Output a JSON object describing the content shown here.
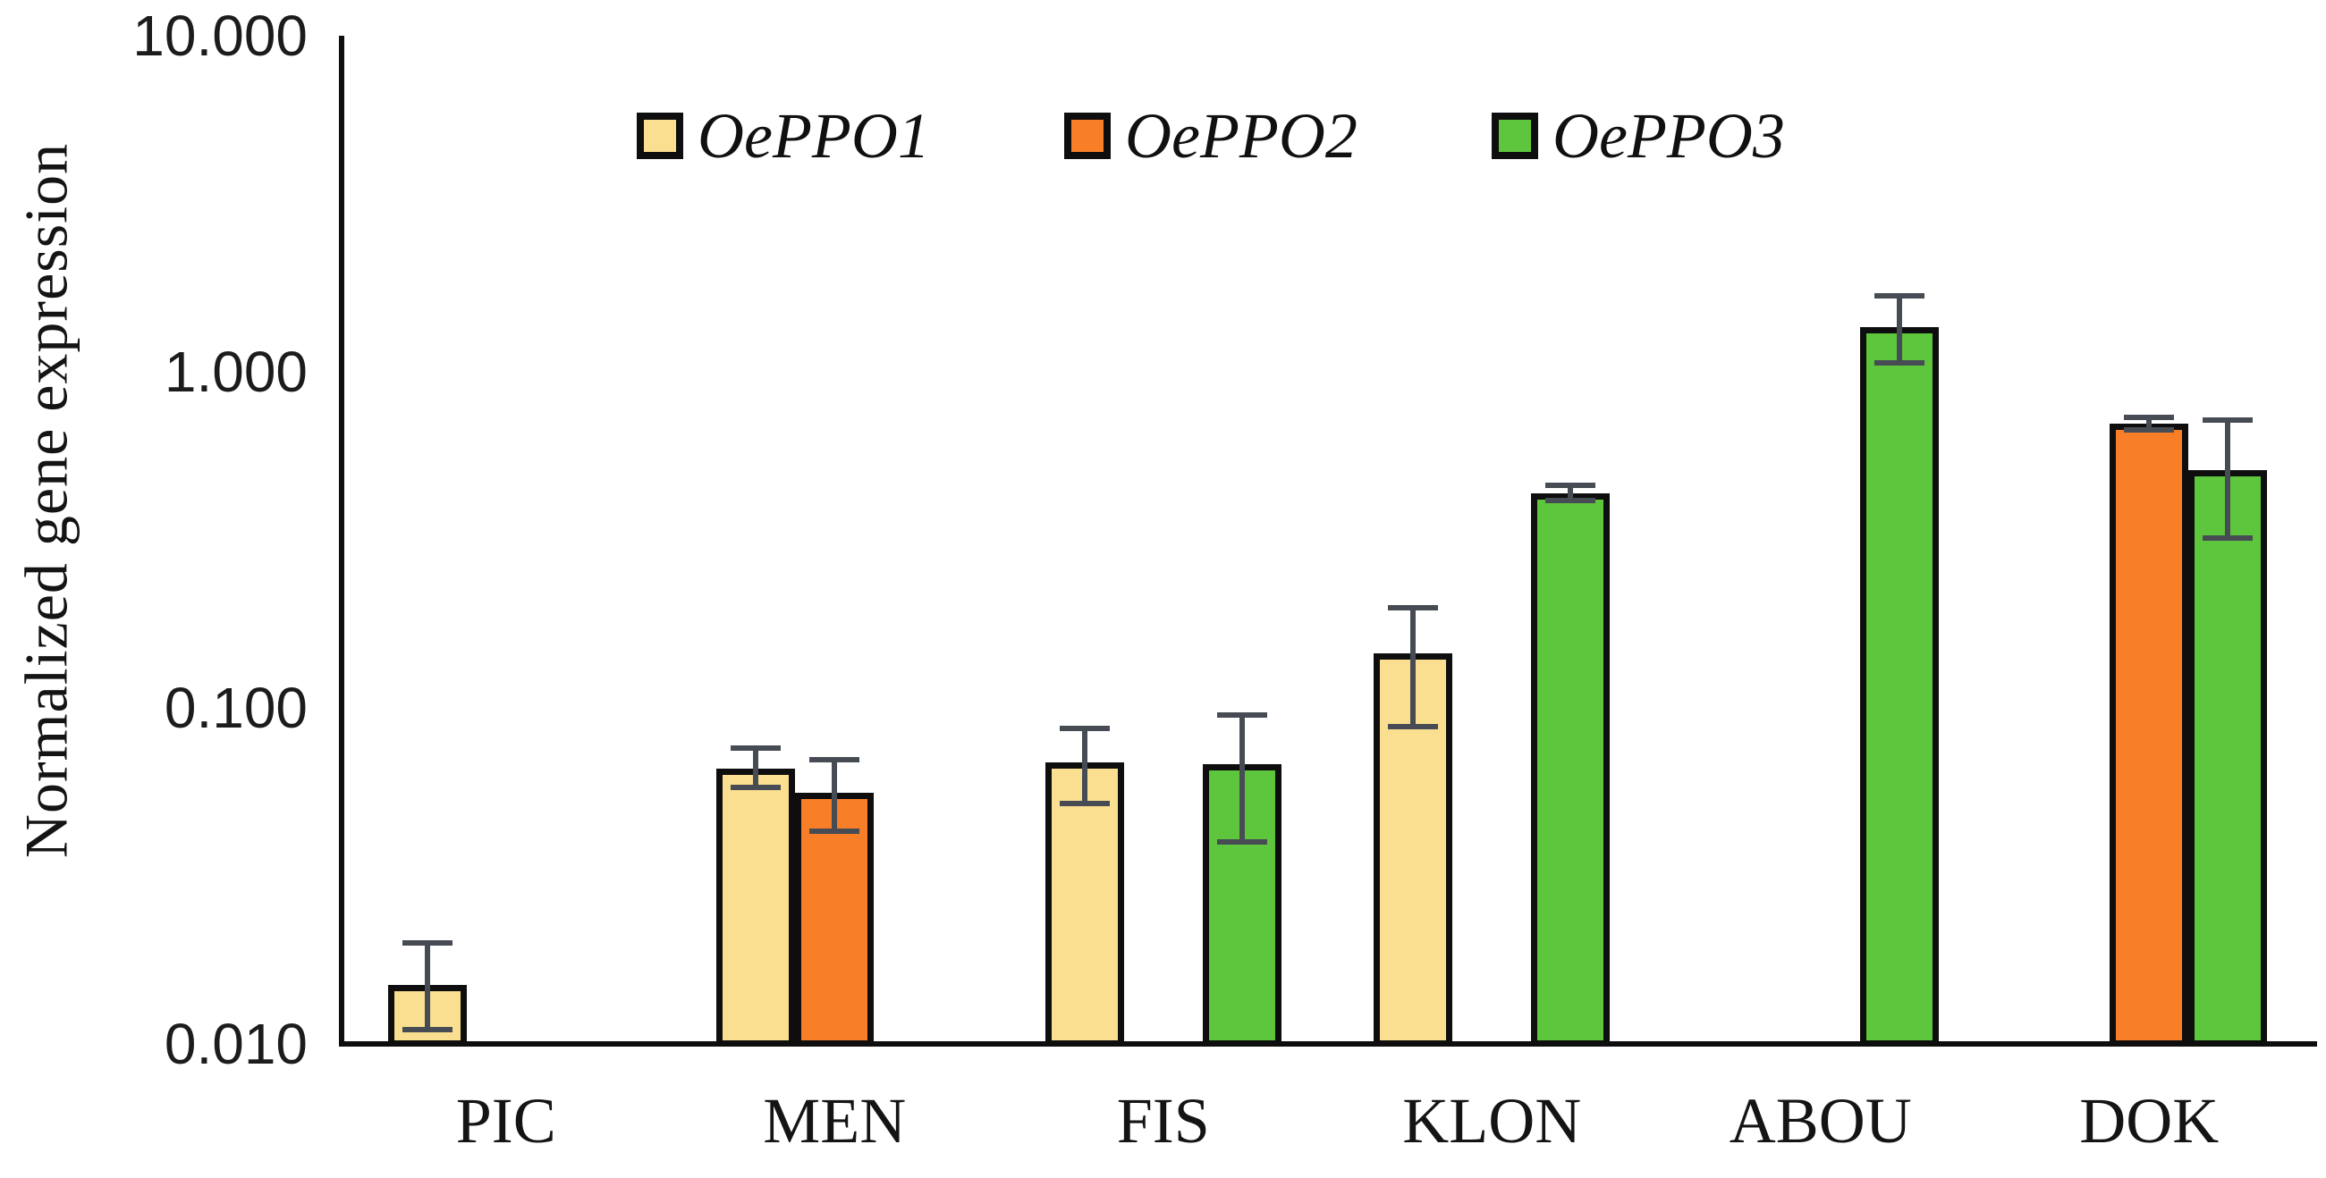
{
  "figure": {
    "y_axis_title": "Normalized gene expression",
    "y_tick_labels": [
      "10.000",
      "1.000",
      "0.100",
      "0.010"
    ],
    "category_labels": [
      "PIC",
      "MEN",
      "FIS",
      "KLON",
      "ABOU",
      "DOK"
    ],
    "legend_labels": [
      "OePPO1",
      "OePPO2",
      "OePPO3"
    ]
  },
  "colors": {
    "series_fill_OePPO1": "#FBDF90",
    "series_fill_OePPO2": "#F87E27",
    "series_fill_OePPO3": "#5EC63D",
    "bar_border": "#0E0E0E",
    "error_bar": "#474C54",
    "axis": "#0E0E0E",
    "text": "#141414"
  },
  "chart_data": {
    "type": "bar",
    "title": "",
    "xlabel": "",
    "ylabel": "Normalized gene expression",
    "y_scale": "log10",
    "ylim": [
      0.01,
      10
    ],
    "y_ticks": [
      10.0,
      1.0,
      0.1,
      0.01
    ],
    "y_tick_labels": [
      "10.000",
      "1.000",
      "0.100",
      "0.010"
    ],
    "grid": false,
    "error_bars": true,
    "legend_position": "top-center",
    "categories": [
      "PIC",
      "MEN",
      "FIS",
      "KLON",
      "ABOU",
      "DOK"
    ],
    "series": [
      {
        "name": "OePPO1",
        "color": "#FBDF90",
        "values": [
          0.015,
          0.066,
          0.069,
          0.145,
          null,
          null
        ],
        "err_low": [
          0.011,
          0.058,
          0.052,
          0.088,
          null,
          null
        ],
        "err_high": [
          0.02,
          0.076,
          0.087,
          0.199,
          null,
          null
        ]
      },
      {
        "name": "OePPO2",
        "color": "#F87E27",
        "values": [
          null,
          0.056,
          null,
          null,
          null,
          0.7
        ],
        "err_low": [
          null,
          0.043,
          null,
          null,
          null,
          0.67
        ],
        "err_high": [
          null,
          0.07,
          null,
          null,
          null,
          0.73
        ]
      },
      {
        "name": "OePPO3",
        "color": "#5EC63D",
        "values": [
          null,
          null,
          0.068,
          0.435,
          1.36,
          0.51
        ],
        "err_low": [
          null,
          null,
          0.04,
          0.415,
          1.06,
          0.32
        ],
        "err_high": [
          null,
          null,
          0.095,
          0.46,
          1.68,
          0.72
        ]
      }
    ]
  }
}
